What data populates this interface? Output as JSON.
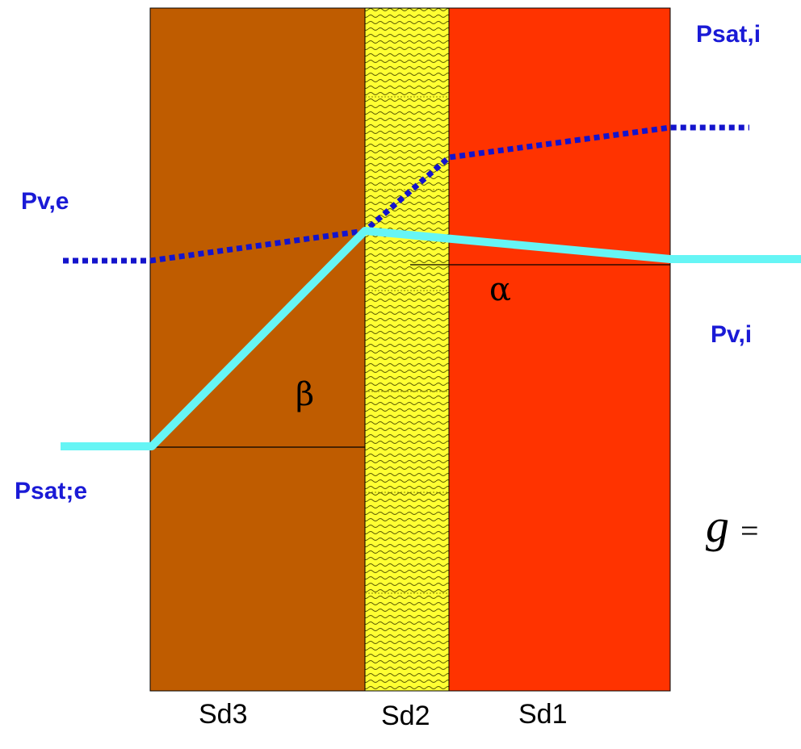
{
  "colors": {
    "layer_sd3": "#bf5c00",
    "layer_sd2": "#ffff33",
    "layer_sd1": "#ff3300",
    "pressure_line": "#66f5f5",
    "saturation_line": "#1414cc",
    "label_text": "#1a1ad6"
  },
  "labels": {
    "psat_i": "Psat,i",
    "pv_e": "Pv,e",
    "pv_i": "Pv,i",
    "psat_e": "Psat;e"
  },
  "layers": {
    "sd3": "Sd3",
    "sd2": "Sd2",
    "sd1": "Sd1"
  },
  "angles": {
    "alpha": "α",
    "beta": "β"
  },
  "formula": {
    "symbol": "g",
    "operator": "="
  }
}
